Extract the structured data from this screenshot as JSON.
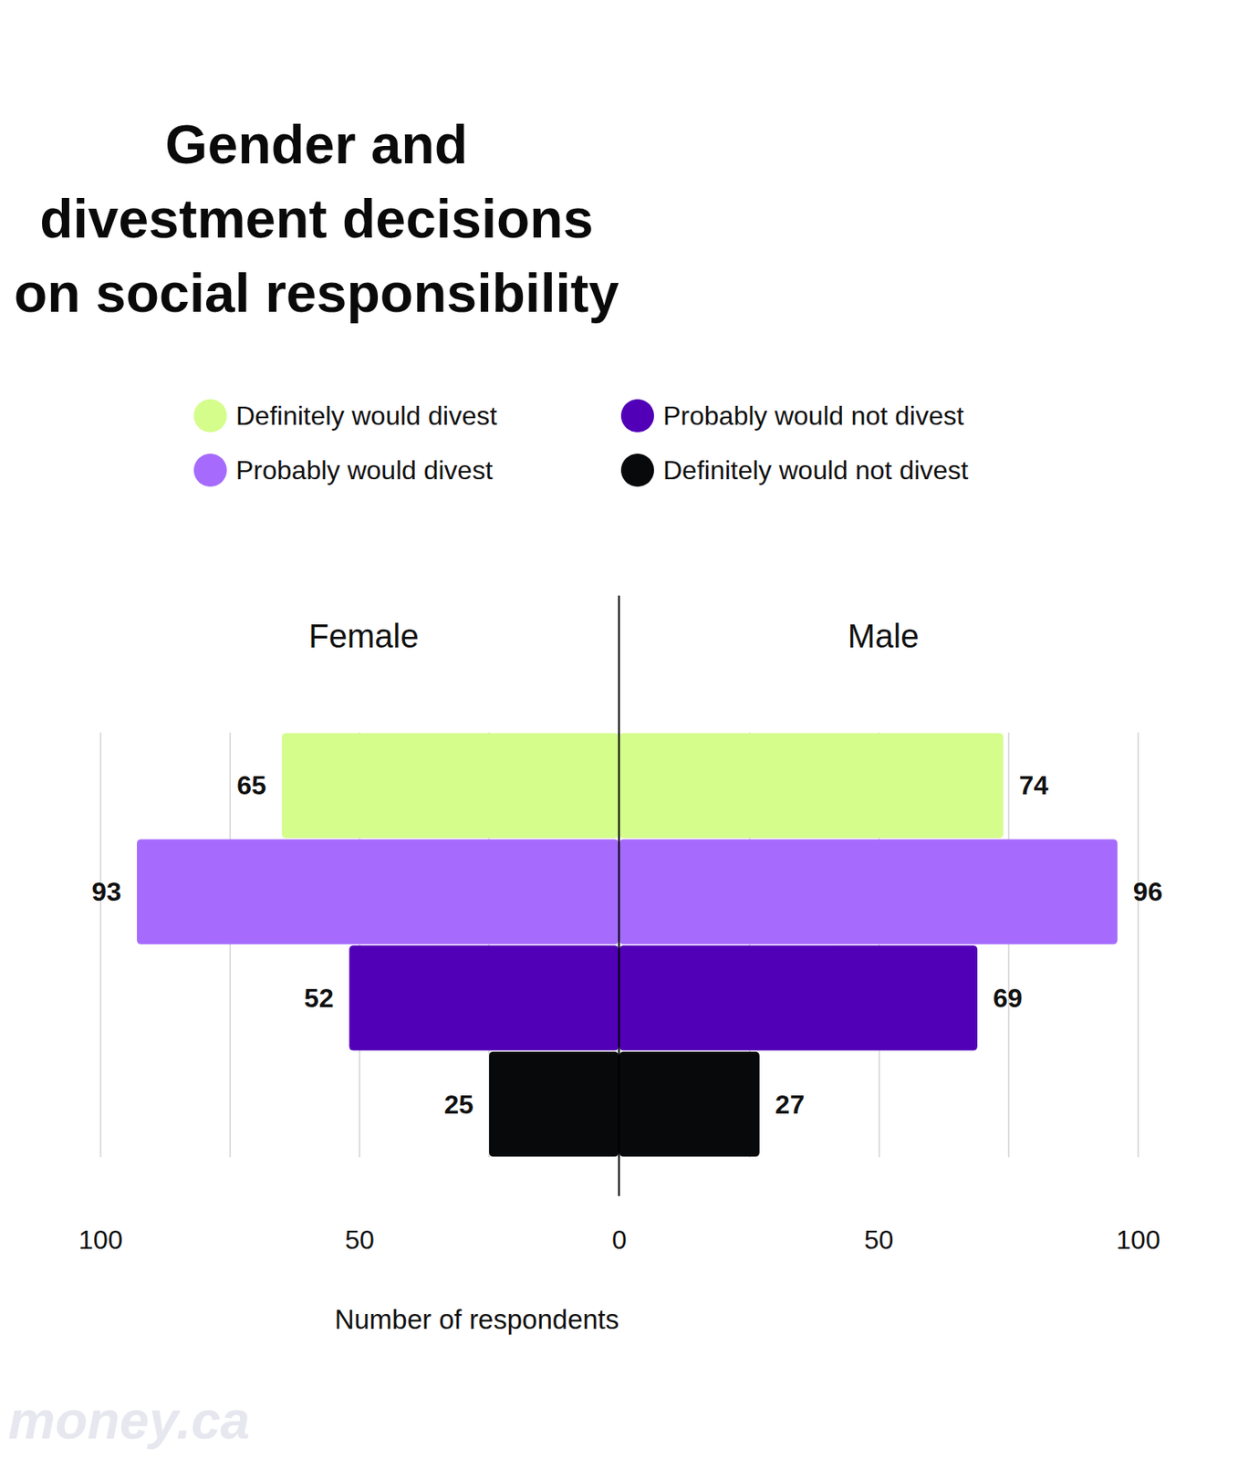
{
  "chart_data": {
    "type": "bar",
    "orientation": "horizontal",
    "title": "Gender and\ndivestment decisions\non social responsibility",
    "categories": [
      "Definitely would divest",
      "Probably would divest",
      "Probably would not divest",
      "Definitely would not divest"
    ],
    "colors": [
      "#d4fd8c",
      "#a66bfc",
      "#5100b8",
      "#08090b"
    ],
    "series": [
      {
        "name": "Female",
        "values": [
          65,
          93,
          52,
          25
        ]
      },
      {
        "name": "Male",
        "values": [
          74,
          96,
          69,
          27
        ]
      }
    ],
    "xlabel": "Number of respondents",
    "xlim": [
      0,
      100
    ],
    "xticks": [
      0,
      50,
      100
    ],
    "grid": true,
    "data_labels": true,
    "tick_labels": "x",
    "source": "money.ca"
  }
}
